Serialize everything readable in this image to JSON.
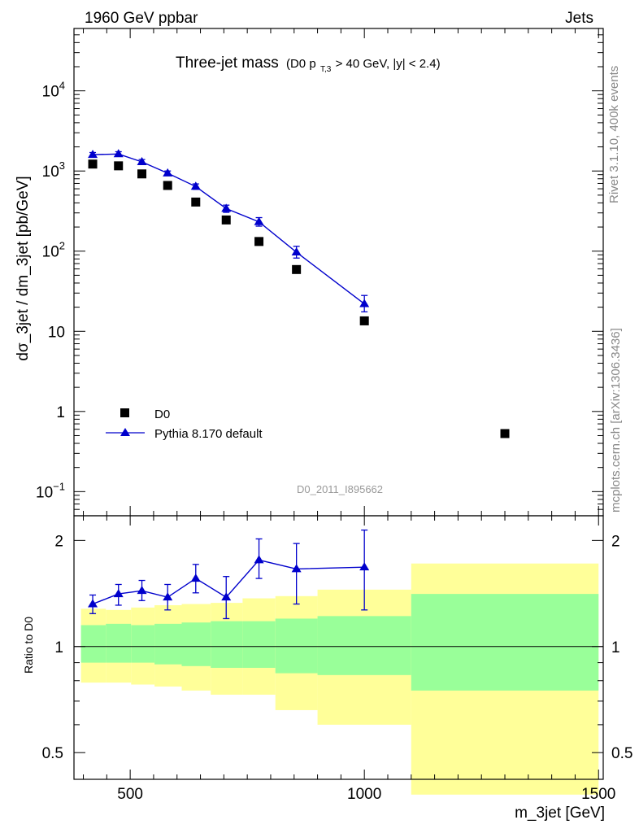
{
  "header": {
    "left": "1960 GeV ppbar",
    "right": "Jets"
  },
  "side_labels": {
    "rivet": "Rivet 3.1.10,  400k events",
    "mcplots": "mcplots.cern.ch [arXiv:1306.3436]"
  },
  "chart_data": {
    "type": "scatter",
    "title": "Three-jet mass",
    "title_detail": "(D0 p",
    "title_detail_sub": "T,3",
    "title_detail_tail": " > 40 GeV, |y| < 2.4)",
    "analysis_id": "D0_2011_I895662",
    "xlabel": "m_3jet [GeV]",
    "xlim": [
      380,
      1510
    ],
    "x_ticks": [
      500,
      1000,
      1500
    ],
    "upper": {
      "ylabel": "dσ_3jet / dm_3jet [pb/GeV]",
      "yscale": "log",
      "ylim": [
        0.05,
        60000
      ],
      "y_tick_labels": [
        {
          "value": 10000,
          "base": "10",
          "exp": "4"
        },
        {
          "value": 1000,
          "base": "10",
          "exp": "3"
        },
        {
          "value": 100,
          "base": "10",
          "exp": "2"
        },
        {
          "value": 10,
          "base": "10",
          "exp": ""
        },
        {
          "value": 1,
          "base": "1",
          "exp": ""
        },
        {
          "value": 0.1,
          "base": "10",
          "exp": "−1"
        }
      ],
      "legend_position": "lower-left",
      "series": [
        {
          "name": "D0",
          "color": "#000000",
          "marker": "square",
          "x": [
            420,
            475,
            525,
            580,
            640,
            705,
            775,
            855,
            1000,
            1300
          ],
          "y": [
            1220,
            1160,
            920,
            660,
            410,
            245,
            132,
            59,
            13.5,
            0.53
          ]
        },
        {
          "name": "Pythia 8.170 default",
          "color": "#0000cc",
          "marker": "triangle",
          "x": [
            420,
            475,
            525,
            580,
            640,
            705,
            775,
            855,
            1000
          ],
          "y": [
            1600,
            1630,
            1300,
            940,
            640,
            340,
            232,
            97,
            22
          ],
          "yerr_low": [
            1500,
            1520,
            1210,
            880,
            590,
            305,
            205,
            82,
            17.5
          ],
          "yerr_high": [
            1700,
            1740,
            1390,
            1000,
            690,
            375,
            262,
            115,
            28
          ]
        }
      ]
    },
    "lower": {
      "ylabel": "Ratio to D0",
      "yscale": "log",
      "ylim": [
        0.42,
        2.35
      ],
      "y_ticks": [
        0.5,
        1,
        2
      ],
      "reference_line": 1,
      "band_colors": {
        "outer": "#ffff99",
        "inner": "#99ff99"
      },
      "bins": [
        {
          "x0": 395,
          "x1": 448,
          "outer": [
            0.79,
            1.28
          ],
          "inner": [
            0.9,
            1.15
          ]
        },
        {
          "x0": 448,
          "x1": 502,
          "outer": [
            0.79,
            1.27
          ],
          "inner": [
            0.9,
            1.16
          ]
        },
        {
          "x0": 502,
          "x1": 552,
          "outer": [
            0.78,
            1.29
          ],
          "inner": [
            0.9,
            1.15
          ]
        },
        {
          "x0": 552,
          "x1": 610,
          "outer": [
            0.77,
            1.31
          ],
          "inner": [
            0.89,
            1.16
          ]
        },
        {
          "x0": 610,
          "x1": 672,
          "outer": [
            0.75,
            1.32
          ],
          "inner": [
            0.88,
            1.17
          ]
        },
        {
          "x0": 672,
          "x1": 740,
          "outer": [
            0.73,
            1.33
          ],
          "inner": [
            0.87,
            1.18
          ]
        },
        {
          "x0": 740,
          "x1": 810,
          "outer": [
            0.73,
            1.37
          ],
          "inner": [
            0.87,
            1.18
          ]
        },
        {
          "x0": 810,
          "x1": 900,
          "outer": [
            0.66,
            1.39
          ],
          "inner": [
            0.84,
            1.2
          ]
        },
        {
          "x0": 900,
          "x1": 1100,
          "outer": [
            0.6,
            1.45
          ],
          "inner": [
            0.83,
            1.22
          ]
        },
        {
          "x0": 1100,
          "x1": 1500,
          "outer": [
            0.38,
            1.72
          ],
          "inner": [
            0.75,
            1.41
          ]
        }
      ],
      "ratio": {
        "name": "Pythia 8.170 default",
        "color": "#0000cc",
        "x": [
          420,
          475,
          525,
          580,
          640,
          705,
          775,
          855,
          1000
        ],
        "y": [
          1.32,
          1.41,
          1.44,
          1.38,
          1.56,
          1.38,
          1.76,
          1.66,
          1.68
        ],
        "yerr_low": [
          1.24,
          1.31,
          1.35,
          1.27,
          1.42,
          1.2,
          1.56,
          1.32,
          1.27
        ],
        "yerr_high": [
          1.4,
          1.5,
          1.54,
          1.5,
          1.71,
          1.58,
          2.02,
          1.96,
          2.14
        ]
      }
    }
  }
}
